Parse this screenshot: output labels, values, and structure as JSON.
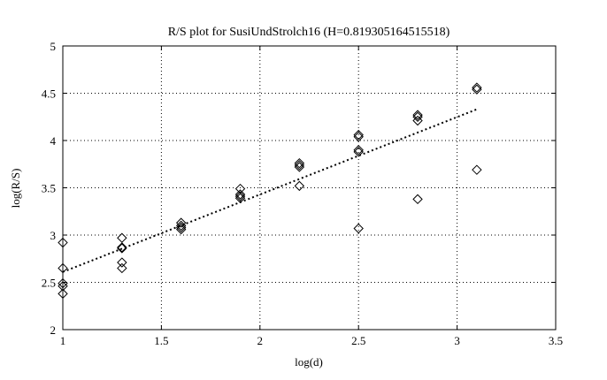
{
  "chart_data": {
    "type": "scatter",
    "title": "R/S plot for SusiUndStrolch16 (H=0.819305164515518)",
    "xlabel": "log(d)",
    "ylabel": "log(R/S)",
    "xlim": [
      1,
      3.5
    ],
    "ylim": [
      2,
      5
    ],
    "xticks": [
      "1",
      "1.5",
      "2",
      "2.5",
      "3",
      "3.5"
    ],
    "yticks": [
      "2",
      "2.5",
      "3",
      "3.5",
      "4",
      "4.5",
      "5"
    ],
    "grid": true,
    "marker": "diamond",
    "points": [
      {
        "x": 1.0,
        "y": 2.92
      },
      {
        "x": 1.0,
        "y": 2.65
      },
      {
        "x": 1.0,
        "y": 2.49
      },
      {
        "x": 1.0,
        "y": 2.46
      },
      {
        "x": 1.0,
        "y": 2.38
      },
      {
        "x": 1.3,
        "y": 2.97
      },
      {
        "x": 1.3,
        "y": 2.87
      },
      {
        "x": 1.3,
        "y": 2.86
      },
      {
        "x": 1.3,
        "y": 2.71
      },
      {
        "x": 1.3,
        "y": 2.65
      },
      {
        "x": 1.6,
        "y": 3.13
      },
      {
        "x": 1.6,
        "y": 3.1
      },
      {
        "x": 1.6,
        "y": 3.08
      },
      {
        "x": 1.6,
        "y": 3.06
      },
      {
        "x": 1.9,
        "y": 3.49
      },
      {
        "x": 1.9,
        "y": 3.43
      },
      {
        "x": 1.9,
        "y": 3.41
      },
      {
        "x": 1.9,
        "y": 3.39
      },
      {
        "x": 2.2,
        "y": 3.76
      },
      {
        "x": 2.2,
        "y": 3.74
      },
      {
        "x": 2.2,
        "y": 3.72
      },
      {
        "x": 2.2,
        "y": 3.52
      },
      {
        "x": 2.5,
        "y": 4.06
      },
      {
        "x": 2.5,
        "y": 4.04
      },
      {
        "x": 2.5,
        "y": 3.9
      },
      {
        "x": 2.5,
        "y": 3.88
      },
      {
        "x": 2.5,
        "y": 3.07
      },
      {
        "x": 2.8,
        "y": 4.27
      },
      {
        "x": 2.8,
        "y": 4.25
      },
      {
        "x": 2.8,
        "y": 4.21
      },
      {
        "x": 2.8,
        "y": 3.38
      },
      {
        "x": 3.1,
        "y": 4.56
      },
      {
        "x": 3.1,
        "y": 4.54
      },
      {
        "x": 3.1,
        "y": 3.69
      }
    ],
    "fit_line": {
      "x": [
        1.0,
        3.1
      ],
      "y": [
        2.61,
        4.33
      ],
      "style": "dotted"
    }
  }
}
